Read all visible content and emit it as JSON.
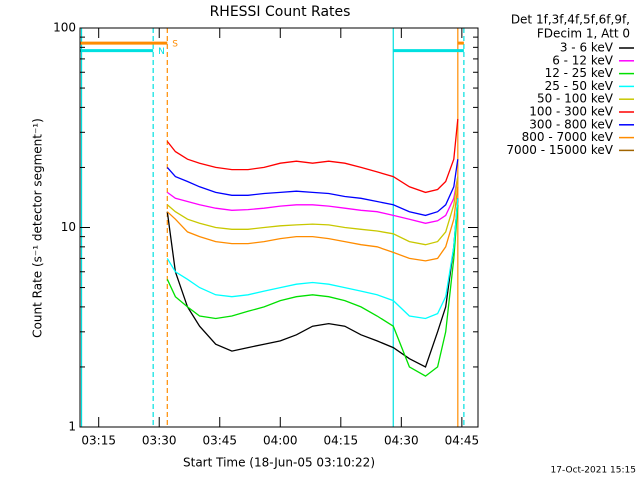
{
  "chart_data": {
    "type": "line",
    "title": "RHESSI Count Rates",
    "xlabel": "Start Time (18-Jun-05 03:10:22)",
    "ylabel": "Count Rate (s⁻¹ detector segment⁻¹)",
    "legend_header": [
      "Det 1f,3f,4f,5f,6f,9f,",
      "FDecim 1, Att 0"
    ],
    "footer": "17-Oct-2021 15:15",
    "log_y": true,
    "ylim": [
      1,
      100
    ],
    "yticks": [
      1,
      10,
      100
    ],
    "yminorticks": [
      2,
      3,
      4,
      5,
      6,
      7,
      8,
      9,
      20,
      30,
      40,
      50,
      60,
      70,
      80,
      90
    ],
    "xlim": [
      "03:10:22",
      "04:49:00"
    ],
    "xticks": [
      "03:15",
      "03:30",
      "03:45",
      "04:00",
      "04:15",
      "04:30",
      "04:45"
    ],
    "x": [
      "03:32",
      "03:34",
      "03:37",
      "03:40",
      "03:44",
      "03:48",
      "03:52",
      "03:56",
      "04:00",
      "04:04",
      "04:08",
      "04:12",
      "04:16",
      "04:20",
      "04:24",
      "04:28",
      "04:32",
      "04:36",
      "04:39",
      "04:41",
      "04:43",
      "04:44"
    ],
    "series": [
      {
        "name": "3 - 6 keV",
        "color": "#000000",
        "values": [
          12,
          6,
          4,
          3.2,
          2.6,
          2.4,
          2.5,
          2.6,
          2.7,
          2.9,
          3.2,
          3.3,
          3.2,
          2.9,
          2.7,
          2.5,
          2.2,
          2.0,
          3,
          4,
          8,
          14
        ]
      },
      {
        "name": "6 - 12 keV",
        "color": "#ff00ff",
        "values": [
          15,
          14,
          13.5,
          13,
          12.5,
          12.2,
          12.3,
          12.5,
          12.8,
          13,
          13,
          12.8,
          12.5,
          12.2,
          12,
          11.5,
          11,
          10.5,
          10.8,
          11.5,
          14,
          18
        ]
      },
      {
        "name": "12 - 25 keV",
        "color": "#00e000",
        "values": [
          5.5,
          4.5,
          4,
          3.6,
          3.5,
          3.6,
          3.8,
          4,
          4.3,
          4.5,
          4.6,
          4.5,
          4.3,
          4,
          3.6,
          3.2,
          2,
          1.8,
          2,
          3,
          7,
          13
        ]
      },
      {
        "name": "25 - 50 keV",
        "color": "#00ffff",
        "values": [
          7,
          6,
          5.5,
          5,
          4.6,
          4.5,
          4.6,
          4.8,
          5,
          5.2,
          5.3,
          5.2,
          5,
          4.8,
          4.6,
          4.3,
          3.6,
          3.5,
          3.7,
          4.5,
          8,
          14
        ]
      },
      {
        "name": "50 - 100 keV",
        "color": "#c8c800",
        "values": [
          13,
          12,
          11,
          10.5,
          10,
          9.8,
          9.8,
          10,
          10.2,
          10.3,
          10.4,
          10.3,
          10,
          9.8,
          9.6,
          9.3,
          8.5,
          8.2,
          8.5,
          9.5,
          13,
          18
        ]
      },
      {
        "name": "100 - 300 keV",
        "color": "#ff0000",
        "values": [
          27,
          24,
          22,
          21,
          20,
          19.5,
          19.5,
          20,
          21,
          21.5,
          21,
          21.5,
          21,
          20,
          19,
          18,
          16,
          15,
          15.5,
          17,
          22,
          35
        ]
      },
      {
        "name": "300 - 800 keV",
        "color": "#0000ff",
        "values": [
          20,
          18,
          17,
          16,
          15,
          14.5,
          14.5,
          14.8,
          15,
          15.2,
          15,
          14.8,
          14.3,
          14,
          13.5,
          13,
          12,
          11.5,
          12,
          13,
          16,
          22
        ]
      },
      {
        "name": "800 - 7000 keV",
        "color": "#ff8c00",
        "values": [
          12,
          11,
          9.5,
          9,
          8.5,
          8.3,
          8.3,
          8.5,
          8.8,
          9,
          9,
          8.8,
          8.5,
          8.2,
          8,
          7.5,
          7,
          6.8,
          7,
          8,
          11,
          16
        ]
      },
      {
        "name": "7000 - 15000 keV",
        "color": "#a06400",
        "values": [
          null,
          null,
          null,
          null,
          null,
          null,
          null,
          null,
          null,
          null,
          null,
          null,
          null,
          null,
          null,
          null,
          null,
          null,
          null,
          null,
          null,
          null
        ]
      }
    ],
    "flags": [
      {
        "label": "S",
        "color": "#ff8c00",
        "level": 84,
        "spans": [
          [
            "03:10:22",
            "03:32:00"
          ],
          [
            "04:44:00",
            "04:45:30"
          ]
        ]
      },
      {
        "label": "N",
        "color": "#00e0e0",
        "level": 77,
        "spans": [
          [
            "03:10:22",
            "03:28:30"
          ],
          [
            "04:28:00",
            "04:45:30"
          ]
        ]
      }
    ],
    "markers": [
      {
        "time": "03:10:45",
        "color": "#00e0e0",
        "dashed": false
      },
      {
        "time": "03:28:30",
        "color": "#00e0e0",
        "dashed": true
      },
      {
        "time": "03:32:00",
        "color": "#ff8c00",
        "dashed": true
      },
      {
        "time": "04:28:00",
        "color": "#00e0e0",
        "dashed": false
      },
      {
        "time": "04:44:00",
        "color": "#ff8c00",
        "dashed": false
      },
      {
        "time": "04:45:30",
        "color": "#00e0e0",
        "dashed": true
      }
    ]
  }
}
